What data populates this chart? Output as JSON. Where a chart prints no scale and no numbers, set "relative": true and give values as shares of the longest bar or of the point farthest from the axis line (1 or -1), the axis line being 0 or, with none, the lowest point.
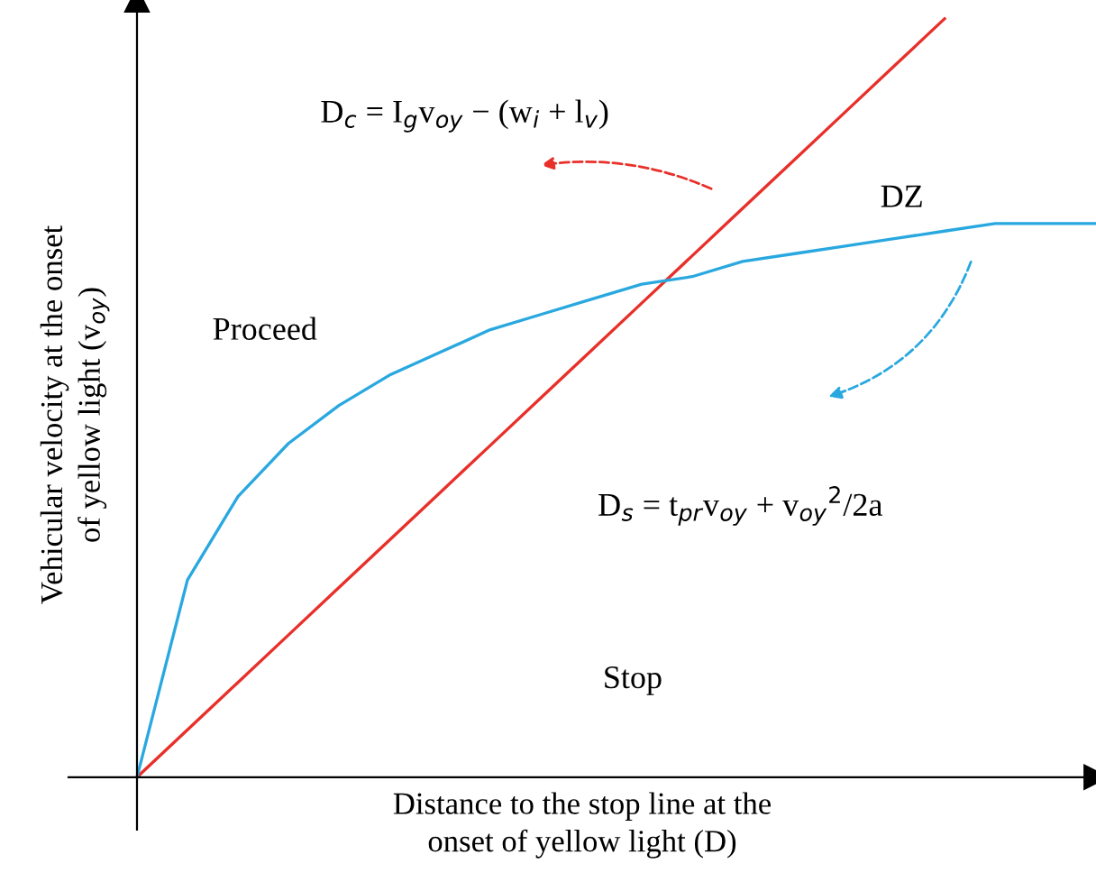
{
  "chart_data": {
    "type": "line",
    "relative": true,
    "xlabel": "Distance to the stop line at the\nonset of yellow light (D)",
    "ylabel": "Vehicular velocity at the onset\nof yellow light (v$_{oy}$)",
    "categories": [
      null,
      null,
      null,
      null,
      null,
      null,
      null,
      null,
      null,
      null,
      null,
      null,
      null,
      null,
      null,
      null,
      null,
      null,
      null,
      null
    ],
    "series": [
      {
        "color": "#e8302a",
        "values": [
          0,
          0.0625,
          0.125,
          0.1875,
          0.25,
          0.3125,
          0.375,
          0.4375,
          0.5,
          0.5625,
          0.625,
          0.6875,
          0.75,
          0.8125,
          0.875,
          0.9375,
          1,
          null,
          null,
          null
        ]
      },
      {
        "color": "#29a8e0",
        "values": [
          0,
          0.26,
          0.37,
          0.44,
          0.49,
          0.53,
          0.56,
          0.59,
          0.61,
          0.63,
          0.65,
          0.66,
          0.68,
          0.69,
          0.7,
          0.71,
          0.72,
          0.73,
          0.73,
          0.73
        ]
      }
    ],
    "annotations": [
      "D$_{c}$ = I$_{g}$v$_{oy}$ − (w$_{i}$ + l$_{v}$)",
      "DZ",
      "Proceed",
      "D$_{s}$ = t$_{pr}$v$_{oy}$ + v$_{oy}$$^{2}$/2a",
      "Stop"
    ],
    "grid": false,
    "legend": false,
    "marker": "none",
    "line_style": "solid"
  }
}
